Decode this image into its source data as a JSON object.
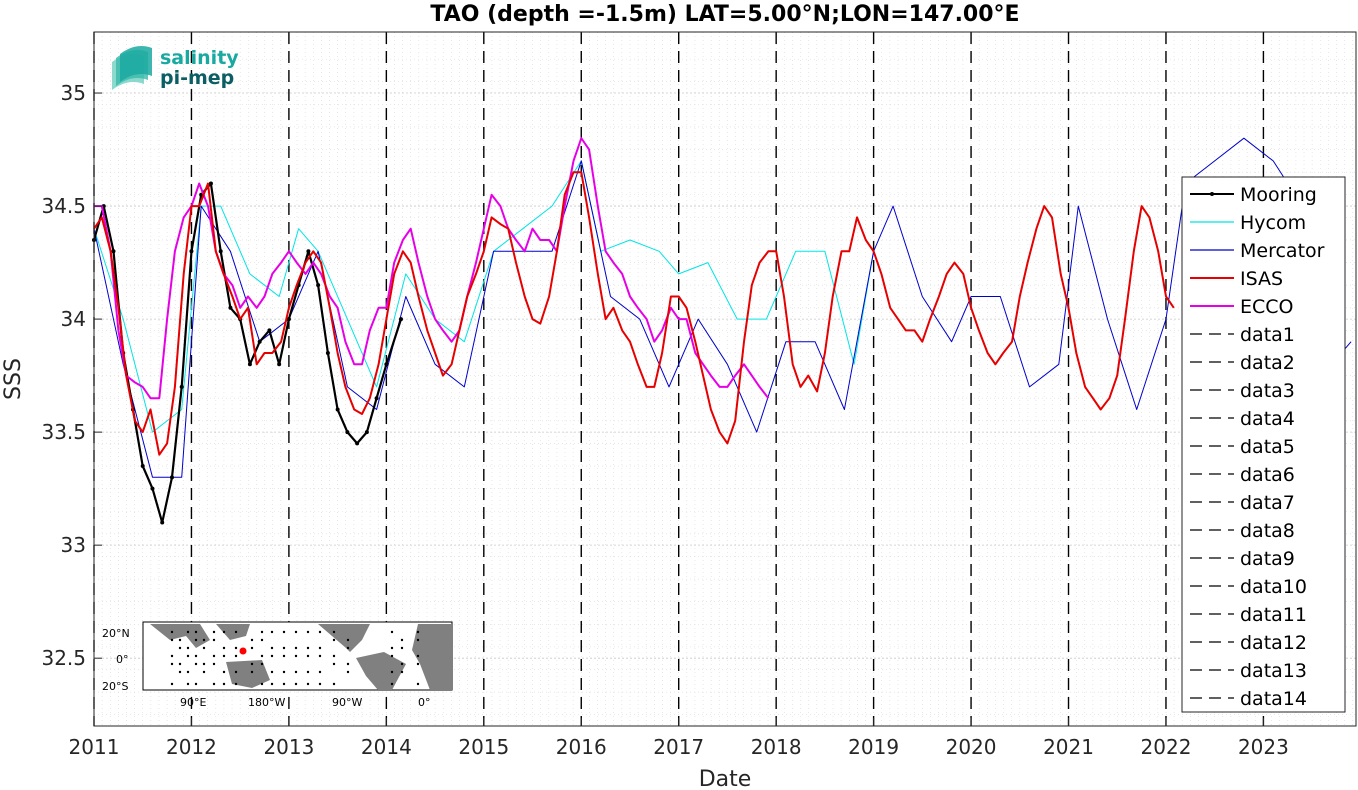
{
  "chart_data": {
    "type": "line",
    "title": "TAO (depth =-1.5m) LAT=5.00°N;LON=147.00°E",
    "xlabel": "Date",
    "ylabel": "SSS",
    "xlim": [
      2011.0,
      2023.95
    ],
    "ylim": [
      32.2,
      35.27
    ],
    "x_ticks": [
      2011,
      2012,
      2013,
      2014,
      2015,
      2016,
      2017,
      2018,
      2019,
      2020,
      2021,
      2022,
      2023
    ],
    "x_tick_labels": [
      "2011",
      "2012",
      "2013",
      "2014",
      "2015",
      "2016",
      "2017",
      "2018",
      "2019",
      "2020",
      "2021",
      "2022",
      "2023"
    ],
    "y_ticks": [
      32.5,
      33,
      33.5,
      34,
      34.5,
      35
    ],
    "y_tick_labels": [
      "32.5",
      "33",
      "33.5",
      "34",
      "34.5",
      "35"
    ],
    "grid": true,
    "legend_position": "right",
    "colors": {
      "Mooring": "#000000",
      "Hycom": "#00e5e5",
      "Mercator": "#0000cc",
      "ISAS": "#e60000",
      "ECCO": "#e600e6",
      "dashed": "#000000"
    },
    "series": [
      {
        "name": "Mooring",
        "style": "line-with-dots",
        "x": [
          2011.0,
          2011.1,
          2011.2,
          2011.3,
          2011.4,
          2011.5,
          2011.6,
          2011.7,
          2011.8,
          2011.9,
          2012.0,
          2012.1,
          2012.2,
          2012.3,
          2012.4,
          2012.5,
          2012.6,
          2012.7,
          2012.8,
          2012.9,
          2013.0,
          2013.1,
          2013.2,
          2013.3,
          2013.4,
          2013.5,
          2013.6,
          2013.7,
          2013.8,
          2013.9,
          2014.0,
          2014.15
        ],
        "y": [
          34.35,
          34.5,
          34.3,
          33.85,
          33.6,
          33.35,
          33.25,
          33.1,
          33.3,
          33.7,
          34.3,
          34.55,
          34.6,
          34.3,
          34.05,
          34.0,
          33.8,
          33.9,
          33.95,
          33.8,
          34.0,
          34.15,
          34.3,
          34.15,
          33.85,
          33.6,
          33.5,
          33.45,
          33.5,
          33.65,
          33.8,
          34.0
        ]
      },
      {
        "name": "Hycom",
        "x": [
          2011.0,
          2011.3,
          2011.6,
          2011.9,
          2012.1,
          2012.3,
          2012.6,
          2012.9,
          2013.1,
          2013.3,
          2013.6,
          2013.9,
          2014.2,
          2014.5,
          2014.8,
          2015.1,
          2015.4,
          2015.7,
          2016.0,
          2016.2,
          2016.5,
          2016.8,
          2017.0,
          2017.3,
          2017.6,
          2017.9,
          2018.2,
          2018.5,
          2018.8,
          2019.0
        ],
        "y": [
          34.4,
          34.0,
          33.5,
          33.6,
          34.5,
          34.5,
          34.2,
          34.1,
          34.4,
          34.3,
          34.0,
          33.7,
          34.2,
          34.0,
          33.9,
          34.3,
          34.4,
          34.5,
          34.7,
          34.3,
          34.35,
          34.3,
          34.2,
          34.25,
          34.0,
          34.0,
          34.3,
          34.3,
          33.8,
          34.3
        ]
      },
      {
        "name": "Mercator",
        "x": [
          2011.0,
          2011.3,
          2011.6,
          2011.9,
          2012.1,
          2012.4,
          2012.7,
          2013.0,
          2013.3,
          2013.6,
          2013.9,
          2014.2,
          2014.5,
          2014.8,
          2015.1,
          2015.4,
          2015.7,
          2016.0,
          2016.3,
          2016.6,
          2016.9,
          2017.2,
          2017.5,
          2017.8,
          2018.1,
          2018.4,
          2018.7,
          2019.0,
          2019.2,
          2019.5,
          2019.8,
          2020.0,
          2020.3,
          2020.6,
          2020.9,
          2021.1,
          2021.4,
          2021.7,
          2022.0,
          2022.2,
          2022.5,
          2022.8,
          2023.1,
          2023.4,
          2023.7,
          2023.9
        ],
        "y": [
          34.4,
          33.8,
          33.3,
          33.3,
          34.5,
          34.3,
          33.9,
          34.0,
          34.3,
          33.7,
          33.6,
          34.1,
          33.8,
          33.7,
          34.3,
          34.3,
          34.3,
          34.7,
          34.1,
          34.0,
          33.7,
          34.0,
          33.8,
          33.5,
          33.9,
          33.9,
          33.6,
          34.3,
          34.5,
          34.1,
          33.9,
          34.1,
          34.1,
          33.7,
          33.8,
          34.5,
          34.0,
          33.6,
          34.0,
          34.6,
          34.7,
          34.8,
          34.7,
          34.5,
          33.8,
          33.9
        ]
      },
      {
        "name": "ISAS",
        "x": [
          2011.0,
          2011.08,
          2011.17,
          2011.25,
          2011.33,
          2011.42,
          2011.5,
          2011.58,
          2011.67,
          2011.75,
          2011.83,
          2011.92,
          2012.0,
          2012.08,
          2012.17,
          2012.25,
          2012.33,
          2012.42,
          2012.5,
          2012.58,
          2012.67,
          2012.75,
          2012.83,
          2012.92,
          2013.0,
          2013.08,
          2013.17,
          2013.25,
          2013.33,
          2013.42,
          2013.5,
          2013.58,
          2013.67,
          2013.75,
          2013.83,
          2013.92,
          2014.0,
          2014.08,
          2014.17,
          2014.25,
          2014.33,
          2014.42,
          2014.5,
          2014.58,
          2014.67,
          2014.75,
          2014.83,
          2014.92,
          2015.0,
          2015.08,
          2015.17,
          2015.25,
          2015.33,
          2015.42,
          2015.5,
          2015.58,
          2015.67,
          2015.75,
          2015.83,
          2015.92,
          2016.0,
          2016.08,
          2016.17,
          2016.25,
          2016.33,
          2016.42,
          2016.5,
          2016.58,
          2016.67,
          2016.75,
          2016.83,
          2016.92,
          2017.0,
          2017.08,
          2017.17,
          2017.25,
          2017.33,
          2017.42,
          2017.5,
          2017.58,
          2017.67,
          2017.75,
          2017.83,
          2017.92,
          2018.0,
          2018.08,
          2018.17,
          2018.25,
          2018.33,
          2018.42,
          2018.5,
          2018.58,
          2018.67,
          2018.75,
          2018.83,
          2018.92,
          2019.0,
          2019.08,
          2019.17,
          2019.25,
          2019.33,
          2019.42,
          2019.5,
          2019.58,
          2019.67,
          2019.75,
          2019.83,
          2019.92,
          2020.0,
          2020.08,
          2020.17,
          2020.25,
          2020.33,
          2020.42,
          2020.5,
          2020.58,
          2020.67,
          2020.75,
          2020.83,
          2020.92,
          2021.0,
          2021.08,
          2021.17,
          2021.25,
          2021.33,
          2021.42,
          2021.5,
          2021.58,
          2021.67,
          2021.75,
          2021.83,
          2021.92,
          2022.0,
          2022.08
        ],
        "y": [
          34.4,
          34.45,
          34.3,
          34.05,
          33.75,
          33.55,
          33.5,
          33.6,
          33.4,
          33.45,
          33.7,
          34.2,
          34.5,
          34.5,
          34.6,
          34.3,
          34.2,
          34.1,
          34.0,
          34.05,
          33.8,
          33.85,
          33.85,
          33.9,
          34.05,
          34.15,
          34.25,
          34.3,
          34.25,
          34.05,
          33.85,
          33.7,
          33.6,
          33.58,
          33.65,
          33.8,
          34.0,
          34.2,
          34.3,
          34.25,
          34.1,
          33.95,
          33.85,
          33.75,
          33.8,
          33.95,
          34.1,
          34.2,
          34.3,
          34.45,
          34.42,
          34.4,
          34.25,
          34.1,
          34.0,
          33.98,
          34.1,
          34.3,
          34.55,
          34.65,
          34.65,
          34.45,
          34.2,
          34.0,
          34.05,
          33.95,
          33.9,
          33.8,
          33.7,
          33.7,
          33.85,
          34.1,
          34.1,
          34.05,
          33.9,
          33.75,
          33.6,
          33.5,
          33.45,
          33.55,
          33.9,
          34.15,
          34.25,
          34.3,
          34.3,
          34.1,
          33.8,
          33.7,
          33.75,
          33.68,
          33.85,
          34.1,
          34.3,
          34.3,
          34.45,
          34.35,
          34.3,
          34.2,
          34.05,
          34.0,
          33.95,
          33.95,
          33.9,
          34.0,
          34.1,
          34.2,
          34.25,
          34.2,
          34.05,
          33.95,
          33.85,
          33.8,
          33.85,
          33.9,
          34.1,
          34.25,
          34.4,
          34.5,
          34.45,
          34.2,
          34.05,
          33.85,
          33.7,
          33.65,
          33.6,
          33.65,
          33.75,
          34.0,
          34.3,
          34.5,
          34.45,
          34.3,
          34.1,
          34.05
        ]
      },
      {
        "name": "ECCO",
        "x": [
          2011.0,
          2011.08,
          2011.17,
          2011.25,
          2011.33,
          2011.42,
          2011.5,
          2011.58,
          2011.67,
          2011.75,
          2011.83,
          2011.92,
          2012.0,
          2012.08,
          2012.17,
          2012.25,
          2012.33,
          2012.42,
          2012.5,
          2012.58,
          2012.67,
          2012.75,
          2012.83,
          2012.92,
          2013.0,
          2013.08,
          2013.17,
          2013.25,
          2013.33,
          2013.42,
          2013.5,
          2013.58,
          2013.67,
          2013.75,
          2013.83,
          2013.92,
          2014.0,
          2014.08,
          2014.17,
          2014.25,
          2014.33,
          2014.42,
          2014.5,
          2014.58,
          2014.67,
          2014.75,
          2014.83,
          2014.92,
          2015.0,
          2015.08,
          2015.17,
          2015.25,
          2015.33,
          2015.42,
          2015.5,
          2015.58,
          2015.67,
          2015.75,
          2015.83,
          2015.92,
          2016.0,
          2016.08,
          2016.17,
          2016.25,
          2016.33,
          2016.42,
          2016.5,
          2016.58,
          2016.67,
          2016.75,
          2016.83,
          2016.92,
          2017.0,
          2017.08,
          2017.17,
          2017.25,
          2017.33,
          2017.42,
          2017.5,
          2017.58,
          2017.67,
          2017.75,
          2017.83,
          2017.92
        ],
        "y": [
          34.5,
          34.5,
          34.3,
          33.95,
          33.75,
          33.72,
          33.7,
          33.65,
          33.65,
          34.0,
          34.3,
          34.45,
          34.5,
          34.6,
          34.5,
          34.3,
          34.2,
          34.15,
          34.05,
          34.1,
          34.05,
          34.1,
          34.2,
          34.25,
          34.3,
          34.25,
          34.2,
          34.25,
          34.2,
          34.1,
          34.05,
          33.9,
          33.8,
          33.8,
          33.95,
          34.05,
          34.05,
          34.25,
          34.35,
          34.4,
          34.25,
          34.1,
          34.0,
          33.95,
          33.9,
          33.95,
          34.1,
          34.25,
          34.4,
          34.55,
          34.5,
          34.4,
          34.35,
          34.3,
          34.4,
          34.35,
          34.35,
          34.3,
          34.5,
          34.7,
          34.8,
          34.75,
          34.5,
          34.3,
          34.25,
          34.2,
          34.1,
          34.05,
          34.0,
          33.9,
          33.95,
          34.05,
          34.0,
          34.0,
          33.85,
          33.8,
          33.75,
          33.7,
          33.7,
          33.75,
          33.8,
          33.75,
          33.7,
          33.65
        ]
      }
    ],
    "legend": [
      "Mooring",
      "Hycom",
      "Mercator",
      "ISAS",
      "ECCO",
      "data1",
      "data2",
      "data3",
      "data4",
      "data5",
      "data6",
      "data7",
      "data8",
      "data9",
      "data10",
      "data11",
      "data12",
      "data13",
      "data14"
    ],
    "vertical_dashed_lines_x": [
      2011,
      2012,
      2013,
      2014,
      2015,
      2016,
      2017,
      2018,
      2019,
      2020,
      2021,
      2022,
      2023
    ]
  },
  "logo": {
    "line1": "salinity",
    "line2": "pi-mep"
  },
  "inset_map": {
    "lat_labels": [
      "20°N",
      "0°",
      "20°S"
    ],
    "lon_labels": [
      "90°E",
      "180°W",
      "90°W",
      "0°"
    ]
  }
}
